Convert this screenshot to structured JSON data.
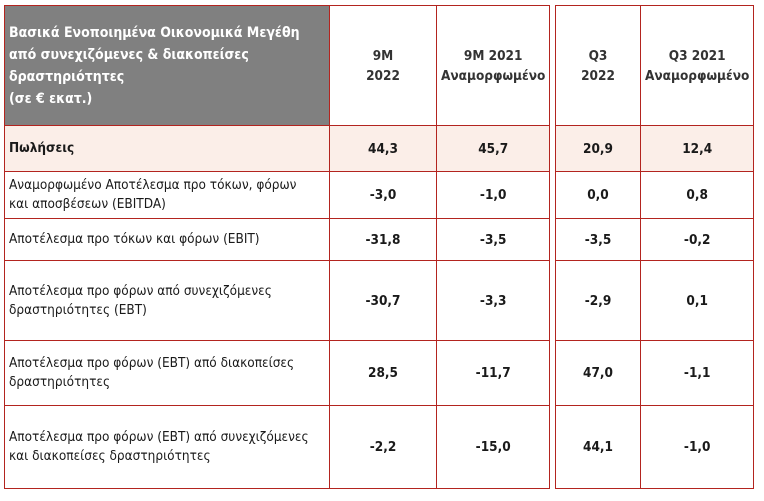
{
  "header": {
    "title_lines": [
      "Βασικά Ενοποιημένα Οικονομικά Μεγέθη",
      "από συνεχιζόμενες & διακοπείσες",
      "δραστηριότητες",
      "(σε € εκατ.)"
    ],
    "columns": [
      {
        "line1": "9M",
        "line2": "2022"
      },
      {
        "line1": "9M 2021",
        "line2": "Αναμορφωμένο"
      },
      {
        "line1": "Q3",
        "line2": "2022"
      },
      {
        "line1": "Q3 2021",
        "line2": "Αναμορφωμένο"
      }
    ]
  },
  "rows": [
    {
      "label_lines": [
        "Πωλήσεις"
      ],
      "values": [
        "44,3",
        "45,7",
        "20,9",
        "12,4"
      ]
    },
    {
      "label_lines": [
        "Αναμορφωμένο Αποτέλεσμα προ τόκων, φόρων",
        "και αποσβέσεων (EBITDA)"
      ],
      "values": [
        "-3,0",
        "-1,0",
        "0,0",
        "0,8"
      ]
    },
    {
      "label_lines": [
        "Αποτέλεσμα προ τόκων και φόρων (EBIT)"
      ],
      "values": [
        "-31,8",
        "-3,5",
        "-3,5",
        "-0,2"
      ]
    },
    {
      "label_lines": [
        "Αποτέλεσμα προ φόρων από συνεχιζόμενες",
        "δραστηριότητες (EBT)"
      ],
      "values": [
        "-30,7",
        "-3,3",
        "-2,9",
        "0,1"
      ]
    },
    {
      "label_lines": [
        "Αποτέλεσμα προ φόρων (EBT) από διακοπείσες",
        "δραστηριότητες"
      ],
      "values": [
        "28,5",
        "-11,7",
        "47,0",
        "-1,1"
      ]
    },
    {
      "label_lines": [
        "Αποτέλεσμα προ φόρων (EBT) από συνεχιζόμενες",
        "και διακοπείσες δραστηριότητες"
      ],
      "values": [
        "-2,2",
        "-15,0",
        "44,1",
        "-1,0"
      ]
    }
  ],
  "colors": {
    "border": "#b3241f",
    "header_bg": "#808080",
    "sales_bg": "#fbeee8"
  }
}
